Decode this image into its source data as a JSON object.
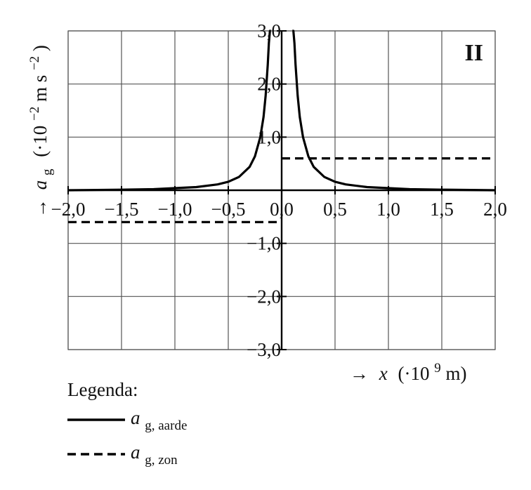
{
  "chart_data": {
    "type": "line",
    "panel_label": "II",
    "x_ticks": [
      "−2,0",
      "−1,5",
      "−1,0",
      "−0,5",
      "0,0",
      "0,5",
      "1,0",
      "1,5",
      "2,0"
    ],
    "x_tick_values": [
      -2.0,
      -1.5,
      -1.0,
      -0.5,
      0.0,
      0.5,
      1.0,
      1.5,
      2.0
    ],
    "y_ticks": [
      "3,0",
      "2,0",
      "1,0",
      "−1,0",
      "−2,0",
      "−3,0"
    ],
    "y_tick_values": [
      3.0,
      2.0,
      1.0,
      -1.0,
      -2.0,
      -3.0
    ],
    "xlim": [
      -2.0,
      2.0
    ],
    "ylim": [
      -3.0,
      3.0
    ],
    "grid": true,
    "xlabel": {
      "arrow": "→",
      "var": "x",
      "unit_pre": "(·10",
      "exp": "9",
      "unit_post": " m)"
    },
    "ylabel": {
      "arrow": "→",
      "var": "a",
      "sub": "g",
      "unit_pre": "(·10",
      "exp": "−2",
      "unit_post": " m s",
      "exp2": "−2",
      "close": ")"
    },
    "series": [
      {
        "name": "a_g, aarde",
        "style": "solid",
        "color": "#000000",
        "x": [
          -2.0,
          -1.5,
          -1.2,
          -1.0,
          -0.8,
          -0.6,
          -0.5,
          -0.4,
          -0.3,
          -0.25,
          -0.2,
          -0.17,
          -0.15,
          -0.13,
          -0.12,
          -0.11,
          -0.1,
          0.1,
          0.11,
          0.12,
          0.13,
          0.15,
          0.17,
          0.2,
          0.25,
          0.3,
          0.4,
          0.5,
          0.6,
          0.8,
          1.0,
          1.2,
          1.5,
          2.0
        ],
        "y": [
          0.0,
          0.01,
          0.02,
          0.04,
          0.06,
          0.11,
          0.16,
          0.25,
          0.44,
          0.64,
          1.0,
          1.38,
          1.78,
          2.36,
          2.77,
          3.0,
          3.0,
          3.0,
          3.0,
          2.77,
          2.36,
          1.78,
          1.38,
          1.0,
          0.64,
          0.44,
          0.25,
          0.16,
          0.11,
          0.06,
          0.04,
          0.02,
          0.01,
          0.0
        ]
      },
      {
        "name": "a_g, zon",
        "style": "dashed",
        "color": "#000000",
        "segments": [
          {
            "x": [
              -2.0,
              0.0
            ],
            "y": [
              -0.6,
              -0.6
            ]
          },
          {
            "x": [
              0.0,
              2.0
            ],
            "y": [
              0.6,
              0.6
            ]
          }
        ]
      }
    ],
    "legend": {
      "title": "Legenda:",
      "position": "bottom-left",
      "entries": [
        {
          "var": "a",
          "sub": "g, aarde",
          "style": "solid"
        },
        {
          "var": "a",
          "sub": "g, zon",
          "style": "dashed"
        }
      ]
    }
  }
}
